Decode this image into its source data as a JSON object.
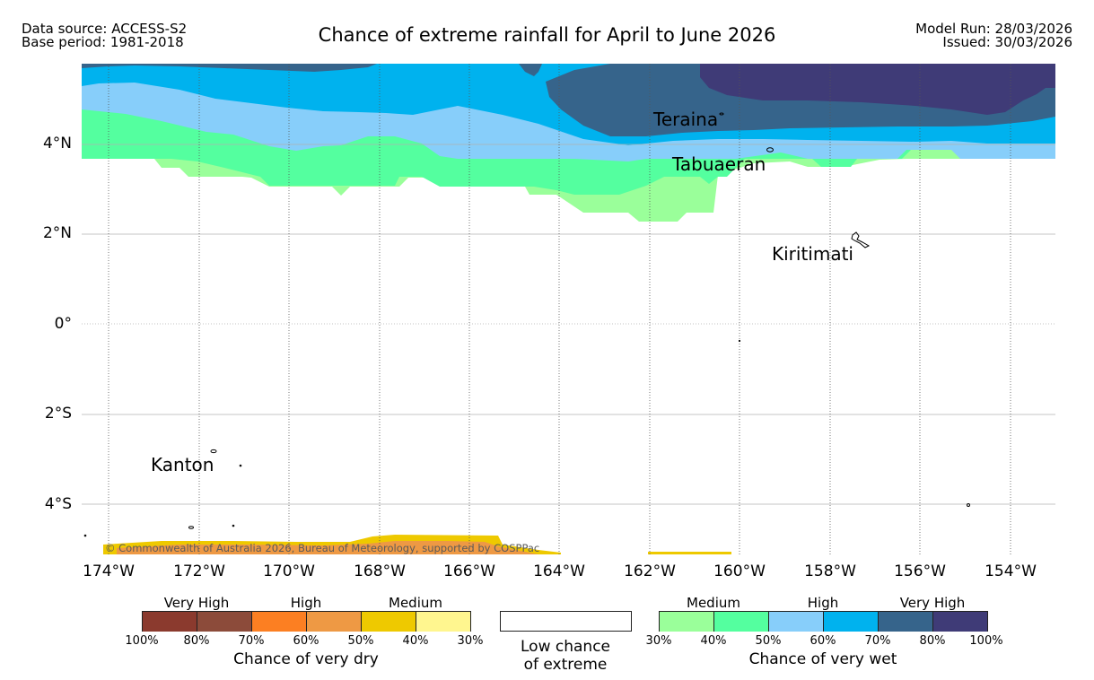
{
  "header": {
    "data_source": "Data source: ACCESS-S2",
    "base_period": "Base period: 1981-2018",
    "title": "Chance of extreme rainfall for April to June 2026",
    "model_run": "Model Run: 28/03/2026",
    "issued": "Issued: 30/03/2026"
  },
  "map": {
    "places": [
      "Teraina",
      "Tabuaeran",
      "Kiritimati",
      "Kanton"
    ],
    "copyright": "© Commonwealth of Australia 2026, Bureau of Meteorology, supported by COSPPac",
    "lat_labels": [
      "4°N",
      "2°N",
      "0°",
      "2°S",
      "4°S"
    ],
    "lon_labels": [
      "174°W",
      "172°W",
      "170°W",
      "168°W",
      "166°W",
      "164°W",
      "162°W",
      "160°W",
      "158°W",
      "156°W",
      "154°W"
    ]
  },
  "legend": {
    "dry": {
      "categories": [
        "Very High",
        "High",
        "Medium"
      ],
      "ticks": [
        "100%",
        "80%",
        "70%",
        "60%",
        "50%",
        "40%",
        "30%"
      ],
      "colors": [
        "#8b3a2e",
        "#8c4b3a",
        "#fc7f22",
        "#ee9944",
        "#eec900",
        "#fff68f"
      ],
      "title": "Chance of very dry"
    },
    "low": {
      "line1": "Low chance",
      "line2": "of extreme"
    },
    "wet": {
      "categories": [
        "Medium",
        "High",
        "Very High"
      ],
      "ticks": [
        "30%",
        "40%",
        "50%",
        "60%",
        "70%",
        "80%",
        "100%"
      ],
      "colors": [
        "#9aff9a",
        "#54ff9f",
        "#87cefa",
        "#00b2ee",
        "#36648b",
        "#3f3b77"
      ],
      "title": "Chance of very wet"
    }
  }
}
